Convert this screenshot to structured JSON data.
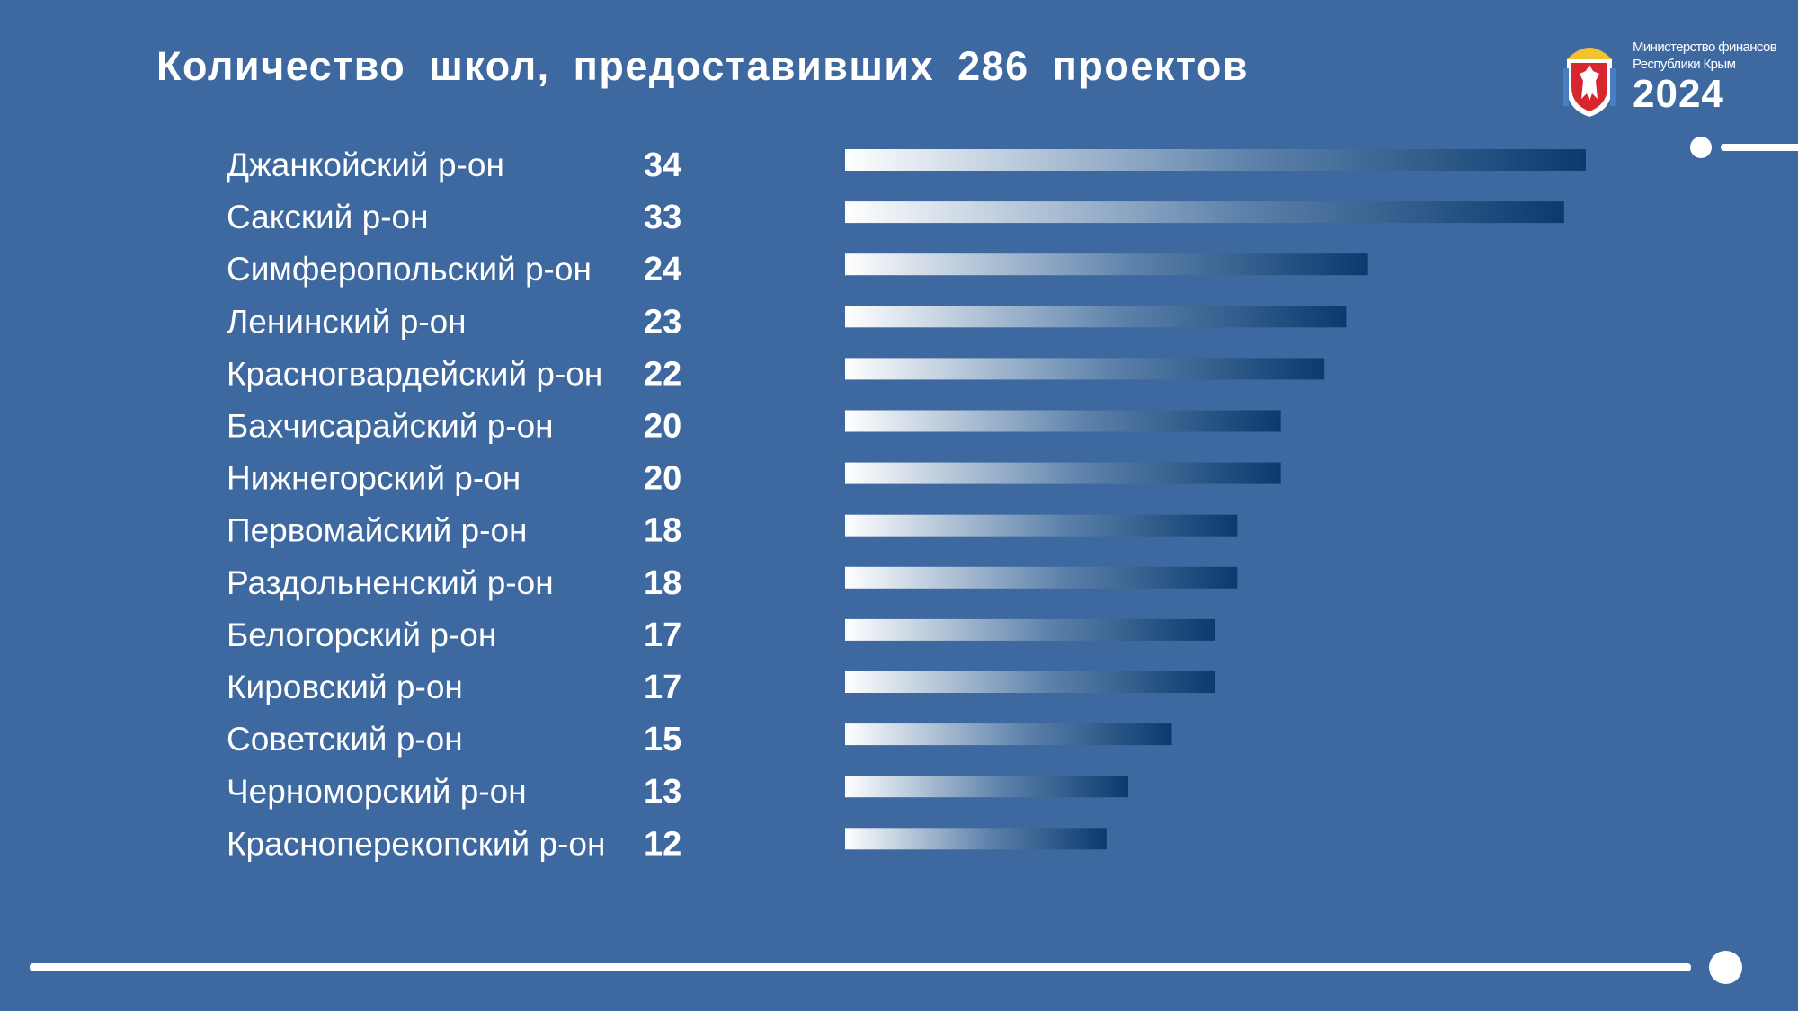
{
  "header": {
    "title": "Количество  школ,  предоставивших  286  проектов"
  },
  "logo": {
    "ministry_line1": "Министерство финансов",
    "ministry_line2": "Республики Крым",
    "year": "2024",
    "emblem_icon": "crimea-coat-of-arms-icon"
  },
  "colors": {
    "background": "#3d68a0",
    "bar_start": "#ffffff",
    "bar_end": "#0a3a6e",
    "text": "#ffffff"
  },
  "chart_data": {
    "type": "bar",
    "orientation": "horizontal",
    "title": "Количество  школ,  предоставивших  286  проектов",
    "categories": [
      "Джанкойский р-он",
      "Сакский р-он",
      "Симферопольский р-он",
      "Ленинский р-он",
      "Красногвардейский р-он",
      "Бахчисарайский р-он",
      "Нижнегорский р-он",
      "Первомайский р-он",
      "Раздольненский р-он",
      "Белогорский р-он",
      "Кировский р-он",
      "Советский р-он",
      "Черноморский р-он",
      "Красноперекопский р-он"
    ],
    "values": [
      34,
      33,
      24,
      23,
      22,
      20,
      20,
      18,
      18,
      17,
      17,
      15,
      13,
      12
    ],
    "xlim": [
      0,
      34
    ],
    "grid": false,
    "legend": "none"
  }
}
